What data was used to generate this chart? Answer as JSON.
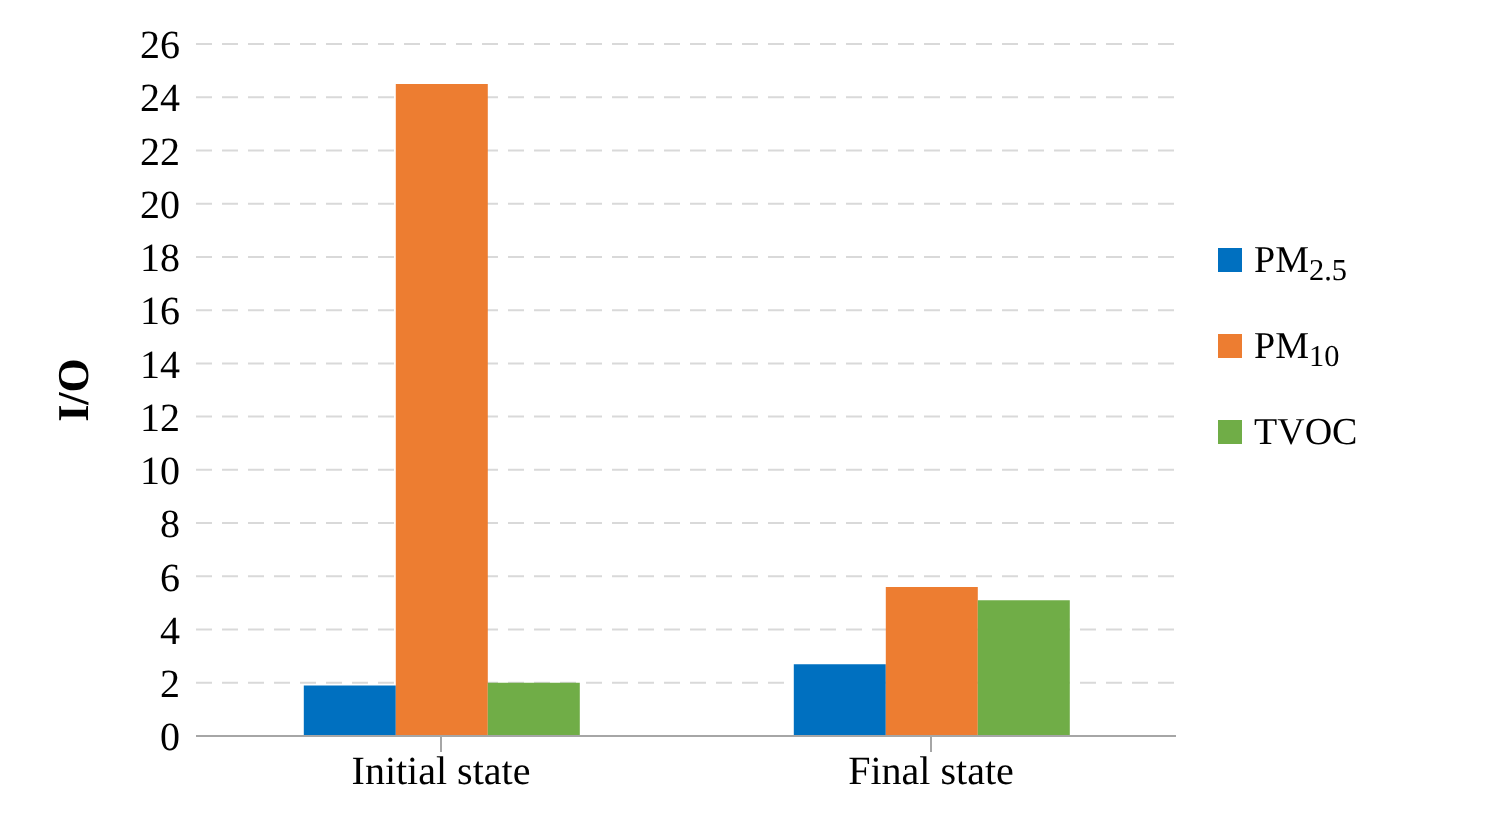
{
  "chart_data": {
    "type": "bar",
    "ylabel": "I/O",
    "categories": [
      "Initial state",
      "Final state"
    ],
    "series": [
      {
        "name": "PM$_{2.5}$",
        "color": "#0070c0",
        "values": [
          1.9,
          2.7
        ]
      },
      {
        "name": "PM$_{10}$",
        "color": "#ed7d31",
        "values": [
          24.5,
          5.6
        ]
      },
      {
        "name": "TVOC",
        "color": "#70ad47",
        "values": [
          2.0,
          5.1
        ]
      }
    ],
    "ylim": [
      0,
      26
    ],
    "yticks": [
      0,
      2,
      4,
      6,
      8,
      10,
      12,
      14,
      16,
      18,
      20,
      22,
      24,
      26
    ],
    "grid": "y",
    "legend": "right"
  }
}
